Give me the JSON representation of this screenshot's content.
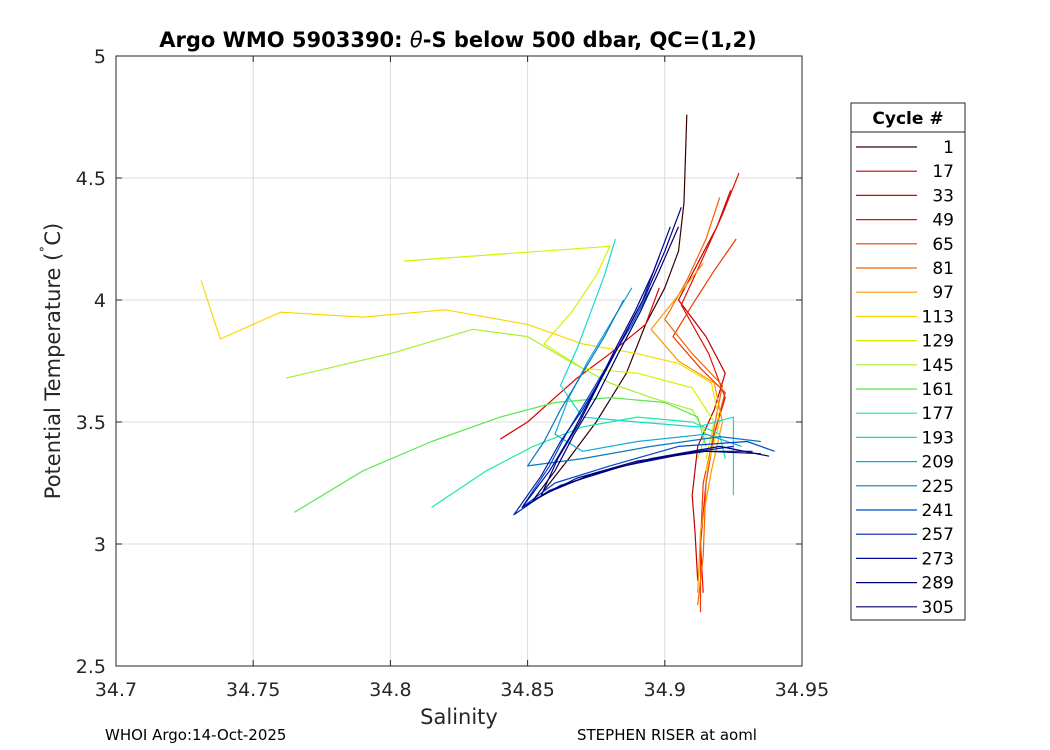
{
  "chart_data": {
    "type": "line",
    "title_prefix": "Argo WMO 5903390: ",
    "title_symbol": "θ",
    "title_suffix": "-S below 500 dbar,  QC=(1,2)",
    "xlabel": "Salinity",
    "ylabel_main": "Potential Temperature (",
    "ylabel_deg": "˚",
    "ylabel_unit": "C)",
    "xlim": [
      34.7,
      34.95
    ],
    "ylim": [
      2.5,
      5
    ],
    "xticks": [
      "34.7",
      "34.75",
      "34.8",
      "34.85",
      "34.9",
      "34.95"
    ],
    "yticks": [
      "2.5",
      "3",
      "3.5",
      "4",
      "4.5",
      "5"
    ],
    "grid": true,
    "legend": {
      "title": "Cycle #",
      "placement": "outside-right",
      "entries": [
        {
          "label": "1",
          "color": "#3a0000"
        },
        {
          "label": "17",
          "color": "#c00000"
        },
        {
          "label": "33",
          "color": "#d80000"
        },
        {
          "label": "49",
          "color": "#e81000"
        },
        {
          "label": "65",
          "color": "#f03800"
        },
        {
          "label": "81",
          "color": "#f56400"
        },
        {
          "label": "97",
          "color": "#f89a00"
        },
        {
          "label": "113",
          "color": "#fcd800"
        },
        {
          "label": "129",
          "color": "#d8f000"
        },
        {
          "label": "145",
          "color": "#a8f02c"
        },
        {
          "label": "161",
          "color": "#58e850"
        },
        {
          "label": "177",
          "color": "#20e8a0"
        },
        {
          "label": "193",
          "color": "#18d8d0"
        },
        {
          "label": "209",
          "color": "#10a8d8"
        },
        {
          "label": "225",
          "color": "#0878c0"
        },
        {
          "label": "241",
          "color": "#0048c8"
        },
        {
          "label": "257",
          "color": "#0020b0"
        },
        {
          "label": "273",
          "color": "#000898"
        },
        {
          "label": "289",
          "color": "#000080"
        },
        {
          "label": "305",
          "color": "#000070"
        }
      ]
    },
    "series": [
      {
        "name": "1",
        "points": [
          [
            34.908,
            4.76
          ],
          [
            34.907,
            4.4
          ],
          [
            34.905,
            4.2
          ],
          [
            34.9,
            4.05
          ],
          [
            34.893,
            3.9
          ],
          [
            34.886,
            3.7
          ],
          [
            34.875,
            3.5
          ],
          [
            34.865,
            3.35
          ],
          [
            34.856,
            3.22
          ]
        ]
      },
      {
        "name": "17",
        "points": [
          [
            34.924,
            4.45
          ],
          [
            34.919,
            4.3
          ],
          [
            34.912,
            4.15
          ],
          [
            34.905,
            4.0
          ],
          [
            34.915,
            3.85
          ],
          [
            34.922,
            3.7
          ],
          [
            34.918,
            3.55
          ],
          [
            34.912,
            3.4
          ],
          [
            34.91,
            3.2
          ],
          [
            34.911,
            3.05
          ],
          [
            34.912,
            2.85
          ]
        ]
      },
      {
        "name": "33",
        "points": [
          [
            34.898,
            4.05
          ],
          [
            34.893,
            3.9
          ],
          [
            34.88,
            3.78
          ],
          [
            34.868,
            3.68
          ],
          [
            34.86,
            3.6
          ],
          [
            34.85,
            3.5
          ],
          [
            34.84,
            3.43
          ]
        ]
      },
      {
        "name": "49",
        "points": [
          [
            34.927,
            4.52
          ],
          [
            34.921,
            4.35
          ],
          [
            34.913,
            4.15
          ],
          [
            34.906,
            3.98
          ],
          [
            34.916,
            3.78
          ],
          [
            34.922,
            3.6
          ],
          [
            34.918,
            3.45
          ],
          [
            34.915,
            3.25
          ],
          [
            34.913,
            3.0
          ],
          [
            34.914,
            2.8
          ]
        ]
      },
      {
        "name": "65",
        "points": [
          [
            34.926,
            4.25
          ],
          [
            34.918,
            4.12
          ],
          [
            34.91,
            3.98
          ],
          [
            34.903,
            3.85
          ],
          [
            34.913,
            3.72
          ],
          [
            34.922,
            3.62
          ],
          [
            34.918,
            3.45
          ],
          [
            34.914,
            3.25
          ],
          [
            34.913,
            3.0
          ],
          [
            34.913,
            2.72
          ]
        ]
      },
      {
        "name": "81",
        "points": [
          [
            34.92,
            4.42
          ],
          [
            34.915,
            4.25
          ],
          [
            34.908,
            4.08
          ],
          [
            34.9,
            3.92
          ],
          [
            34.91,
            3.78
          ],
          [
            34.921,
            3.65
          ],
          [
            34.918,
            3.48
          ],
          [
            34.915,
            3.25
          ],
          [
            34.914,
            2.95
          ],
          [
            34.912,
            2.75
          ]
        ]
      },
      {
        "name": "97",
        "points": [
          [
            34.914,
            4.15
          ],
          [
            34.905,
            4.02
          ],
          [
            34.895,
            3.88
          ],
          [
            34.905,
            3.75
          ],
          [
            34.918,
            3.66
          ],
          [
            34.921,
            3.5
          ],
          [
            34.917,
            3.3
          ],
          [
            34.913,
            3.05
          ],
          [
            34.912,
            2.8
          ]
        ]
      },
      {
        "name": "113",
        "points": [
          [
            34.731,
            4.08
          ],
          [
            34.738,
            3.84
          ],
          [
            34.76,
            3.95
          ],
          [
            34.79,
            3.93
          ],
          [
            34.82,
            3.96
          ],
          [
            34.85,
            3.9
          ],
          [
            34.87,
            3.82
          ],
          [
            34.89,
            3.78
          ],
          [
            34.905,
            3.74
          ],
          [
            34.917,
            3.66
          ],
          [
            34.92,
            3.5
          ],
          [
            34.915,
            3.3
          ]
        ]
      },
      {
        "name": "129",
        "points": [
          [
            34.805,
            4.16
          ],
          [
            34.88,
            4.22
          ],
          [
            34.875,
            4.1
          ],
          [
            34.866,
            3.95
          ],
          [
            34.856,
            3.82
          ],
          [
            34.87,
            3.72
          ],
          [
            34.89,
            3.7
          ],
          [
            34.91,
            3.64
          ],
          [
            34.918,
            3.5
          ],
          [
            34.915,
            3.35
          ]
        ]
      },
      {
        "name": "145",
        "points": [
          [
            34.762,
            3.68
          ],
          [
            34.8,
            3.78
          ],
          [
            34.83,
            3.88
          ],
          [
            34.85,
            3.85
          ],
          [
            34.865,
            3.75
          ],
          [
            34.88,
            3.66
          ],
          [
            34.895,
            3.6
          ],
          [
            34.91,
            3.55
          ],
          [
            34.915,
            3.45
          ],
          [
            34.912,
            3.35
          ]
        ]
      },
      {
        "name": "161",
        "points": [
          [
            34.765,
            3.13
          ],
          [
            34.79,
            3.3
          ],
          [
            34.815,
            3.42
          ],
          [
            34.84,
            3.52
          ],
          [
            34.86,
            3.58
          ],
          [
            34.88,
            3.6
          ],
          [
            34.9,
            3.58
          ],
          [
            34.912,
            3.52
          ],
          [
            34.915,
            3.4
          ]
        ]
      },
      {
        "name": "177",
        "points": [
          [
            34.815,
            3.15
          ],
          [
            34.835,
            3.3
          ],
          [
            34.852,
            3.4
          ],
          [
            34.87,
            3.48
          ],
          [
            34.89,
            3.52
          ],
          [
            34.91,
            3.5
          ],
          [
            34.92,
            3.45
          ],
          [
            34.922,
            3.35
          ]
        ]
      },
      {
        "name": "193",
        "points": [
          [
            34.882,
            4.25
          ],
          [
            34.878,
            4.1
          ],
          [
            34.873,
            3.95
          ],
          [
            34.868,
            3.8
          ],
          [
            34.862,
            3.65
          ],
          [
            34.87,
            3.52
          ],
          [
            34.89,
            3.5
          ],
          [
            34.912,
            3.48
          ],
          [
            34.925,
            3.52
          ],
          [
            34.925,
            3.2
          ]
        ]
      },
      {
        "name": "209",
        "points": [
          [
            34.888,
            4.05
          ],
          [
            34.88,
            3.9
          ],
          [
            34.872,
            3.75
          ],
          [
            34.865,
            3.6
          ],
          [
            34.86,
            3.45
          ],
          [
            34.87,
            3.38
          ],
          [
            34.89,
            3.42
          ],
          [
            34.915,
            3.45
          ],
          [
            34.928,
            3.4
          ]
        ]
      },
      {
        "name": "225",
        "points": [
          [
            34.885,
            4.0
          ],
          [
            34.878,
            3.85
          ],
          [
            34.87,
            3.7
          ],
          [
            34.862,
            3.55
          ],
          [
            34.856,
            3.42
          ],
          [
            34.85,
            3.32
          ],
          [
            34.87,
            3.35
          ],
          [
            34.895,
            3.4
          ],
          [
            34.92,
            3.44
          ],
          [
            34.935,
            3.42
          ]
        ]
      },
      {
        "name": "241",
        "points": [
          [
            34.895,
            4.05
          ],
          [
            34.888,
            3.9
          ],
          [
            34.88,
            3.75
          ],
          [
            34.872,
            3.6
          ],
          [
            34.864,
            3.45
          ],
          [
            34.858,
            3.32
          ],
          [
            34.848,
            3.15
          ],
          [
            34.86,
            3.25
          ],
          [
            34.88,
            3.32
          ],
          [
            34.905,
            3.4
          ],
          [
            34.93,
            3.42
          ],
          [
            34.94,
            3.38
          ]
        ]
      },
      {
        "name": "257",
        "points": [
          [
            34.898,
            4.18
          ],
          [
            34.892,
            4.0
          ],
          [
            34.885,
            3.85
          ],
          [
            34.878,
            3.7
          ],
          [
            34.87,
            3.55
          ],
          [
            34.862,
            3.42
          ],
          [
            34.855,
            3.28
          ],
          [
            34.845,
            3.12
          ],
          [
            34.858,
            3.22
          ],
          [
            34.878,
            3.3
          ],
          [
            34.9,
            3.36
          ],
          [
            34.925,
            3.4
          ]
        ]
      },
      {
        "name": "273",
        "points": [
          [
            34.902,
            4.3
          ],
          [
            34.896,
            4.12
          ],
          [
            34.889,
            3.95
          ],
          [
            34.882,
            3.8
          ],
          [
            34.874,
            3.62
          ],
          [
            34.866,
            3.45
          ],
          [
            34.858,
            3.3
          ],
          [
            34.848,
            3.15
          ],
          [
            34.862,
            3.24
          ],
          [
            34.885,
            3.32
          ],
          [
            34.912,
            3.38
          ],
          [
            34.932,
            3.38
          ]
        ]
      },
      {
        "name": "289",
        "points": [
          [
            34.906,
            4.38
          ],
          [
            34.9,
            4.2
          ],
          [
            34.893,
            4.02
          ],
          [
            34.885,
            3.85
          ],
          [
            34.877,
            3.68
          ],
          [
            34.869,
            3.5
          ],
          [
            34.861,
            3.35
          ],
          [
            34.855,
            3.2
          ],
          [
            34.872,
            3.28
          ],
          [
            34.895,
            3.35
          ],
          [
            34.92,
            3.4
          ],
          [
            34.938,
            3.36
          ]
        ]
      },
      {
        "name": "305",
        "points": [
          [
            34.905,
            4.3
          ],
          [
            34.898,
            4.12
          ],
          [
            34.891,
            3.95
          ],
          [
            34.883,
            3.78
          ],
          [
            34.875,
            3.6
          ],
          [
            34.867,
            3.45
          ],
          [
            34.86,
            3.3
          ],
          [
            34.852,
            3.18
          ],
          [
            34.868,
            3.27
          ],
          [
            34.89,
            3.34
          ],
          [
            34.915,
            3.38
          ],
          [
            34.935,
            3.37
          ]
        ]
      }
    ]
  },
  "footer": {
    "left": "WHOI Argo:14-Oct-2025",
    "right": "STEPHEN RISER at aoml"
  }
}
